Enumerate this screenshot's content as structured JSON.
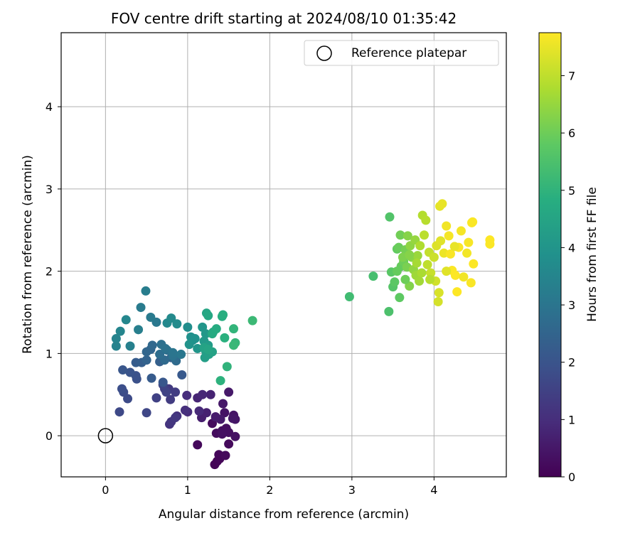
{
  "chart_data": {
    "type": "scatter",
    "title": "FOV centre drift starting at 2024/08/10 01:35:42",
    "xlabel": "Angular distance from reference (arcmin)",
    "ylabel": "Rotation from reference (arcmin)",
    "xlim": [
      -0.54,
      4.88
    ],
    "ylim": [
      -0.5,
      4.9
    ],
    "xticks": [
      0,
      1,
      2,
      3,
      4
    ],
    "yticks": [
      0,
      1,
      2,
      3,
      4
    ],
    "grid": true,
    "legend": {
      "position": "top-right",
      "entries": [
        "Reference platepar"
      ]
    },
    "reference_point": {
      "label": "Reference platepar",
      "x": 0,
      "y": 0
    },
    "colorbar": {
      "label": "Hours from first FF file",
      "colormap": "viridis",
      "range": [
        0,
        7.75
      ],
      "ticks": [
        0,
        1,
        2,
        3,
        4,
        5,
        6,
        7
      ]
    },
    "points": [
      [
        1.36,
        -0.31,
        0.05
      ],
      [
        1.33,
        -0.35,
        0.08
      ],
      [
        1.39,
        -0.28,
        0.1
      ],
      [
        1.38,
        -0.23,
        0.12
      ],
      [
        1.12,
        -0.11,
        0.15
      ],
      [
        1.46,
        -0.24,
        0.18
      ],
      [
        1.5,
        -0.1,
        0.2
      ],
      [
        1.3,
        0.15,
        0.22
      ],
      [
        1.35,
        0.03,
        0.25
      ],
      [
        1.42,
        0.06,
        0.28
      ],
      [
        1.47,
        0.09,
        0.3
      ],
      [
        1.5,
        0.04,
        0.32
      ],
      [
        1.42,
        0.02,
        0.35
      ],
      [
        1.58,
        -0.01,
        0.38
      ],
      [
        1.45,
        0.28,
        0.4
      ],
      [
        1.56,
        0.25,
        0.42
      ],
      [
        1.58,
        0.2,
        0.45
      ],
      [
        1.55,
        0.21,
        0.48
      ],
      [
        1.43,
        0.39,
        0.5
      ],
      [
        1.5,
        0.53,
        0.52
      ],
      [
        1.4,
        0.2,
        0.55
      ],
      [
        1.34,
        0.23,
        0.6
      ],
      [
        1.17,
        0.22,
        0.65
      ],
      [
        1.23,
        0.28,
        0.7
      ],
      [
        1.28,
        0.5,
        0.75
      ],
      [
        1.12,
        0.46,
        0.8
      ],
      [
        1.18,
        0.5,
        0.85
      ],
      [
        1.14,
        0.3,
        0.9
      ],
      [
        1.0,
        0.29,
        0.95
      ],
      [
        0.99,
        0.49,
        1.0
      ],
      [
        0.97,
        0.31,
        1.05
      ],
      [
        0.87,
        0.24,
        1.1
      ],
      [
        0.78,
        0.14,
        1.15
      ],
      [
        0.8,
        0.17,
        1.2
      ],
      [
        0.85,
        0.22,
        1.25
      ],
      [
        0.77,
        0.57,
        1.3
      ],
      [
        0.79,
        0.44,
        1.35
      ],
      [
        0.85,
        0.53,
        1.4
      ],
      [
        0.72,
        0.57,
        1.45
      ],
      [
        0.62,
        0.46,
        1.5
      ],
      [
        0.74,
        0.53,
        1.55
      ],
      [
        0.7,
        0.62,
        1.6
      ],
      [
        0.5,
        0.28,
        1.65
      ],
      [
        0.17,
        0.29,
        1.7
      ],
      [
        0.27,
        0.45,
        1.75
      ],
      [
        0.22,
        0.53,
        1.8
      ],
      [
        0.2,
        0.57,
        1.85
      ],
      [
        0.38,
        0.69,
        1.9
      ],
      [
        0.37,
        0.73,
        1.95
      ],
      [
        0.3,
        0.77,
        2.0
      ],
      [
        0.21,
        0.8,
        2.05
      ],
      [
        0.7,
        0.65,
        2.1
      ],
      [
        0.93,
        0.74,
        2.15
      ],
      [
        0.56,
        0.7,
        2.2
      ],
      [
        0.37,
        0.89,
        2.25
      ],
      [
        0.44,
        0.89,
        2.3
      ],
      [
        0.66,
        0.9,
        2.35
      ],
      [
        0.8,
        0.95,
        2.4
      ],
      [
        0.5,
        0.92,
        2.45
      ],
      [
        0.55,
        1.05,
        2.5
      ],
      [
        0.5,
        1.02,
        2.55
      ],
      [
        0.57,
        1.1,
        2.6
      ],
      [
        0.72,
        0.92,
        2.65
      ],
      [
        0.86,
        0.91,
        2.7
      ],
      [
        0.66,
        0.99,
        2.75
      ],
      [
        0.75,
        1.04,
        2.8
      ],
      [
        0.68,
        1.11,
        2.85
      ],
      [
        0.73,
        1.06,
        2.9
      ],
      [
        0.82,
        0.97,
        2.95
      ],
      [
        0.82,
        1.01,
        3.0
      ],
      [
        0.92,
        0.99,
        3.05
      ],
      [
        0.62,
        1.38,
        3.1
      ],
      [
        0.55,
        1.44,
        3.15
      ],
      [
        0.43,
        1.56,
        3.2
      ],
      [
        0.49,
        1.76,
        3.25
      ],
      [
        0.4,
        1.29,
        3.3
      ],
      [
        0.3,
        1.09,
        3.35
      ],
      [
        0.13,
        1.09,
        3.4
      ],
      [
        0.13,
        1.18,
        3.45
      ],
      [
        0.18,
        1.27,
        3.5
      ],
      [
        0.25,
        1.41,
        3.55
      ],
      [
        0.75,
        1.37,
        3.6
      ],
      [
        0.8,
        1.43,
        3.65
      ],
      [
        0.87,
        1.36,
        3.7
      ],
      [
        1.0,
        1.32,
        3.75
      ],
      [
        1.06,
        1.16,
        3.8
      ],
      [
        1.04,
        1.2,
        3.85
      ],
      [
        1.09,
        1.18,
        3.9
      ],
      [
        1.02,
        1.11,
        3.95
      ],
      [
        1.12,
        1.06,
        4.0
      ],
      [
        1.18,
        1.32,
        4.05
      ],
      [
        1.22,
        1.24,
        4.1
      ],
      [
        1.2,
        1.15,
        4.15
      ],
      [
        1.25,
        1.1,
        4.2
      ],
      [
        1.22,
        1.03,
        4.25
      ],
      [
        1.21,
        0.95,
        4.3
      ],
      [
        1.26,
        0.99,
        4.35
      ],
      [
        1.3,
        1.02,
        4.4
      ],
      [
        1.2,
        1.07,
        4.45
      ],
      [
        1.25,
        1.05,
        4.5
      ],
      [
        1.23,
        1.49,
        4.55
      ],
      [
        1.25,
        1.46,
        4.6
      ],
      [
        1.31,
        1.26,
        4.65
      ],
      [
        1.3,
        1.24,
        4.7
      ],
      [
        1.35,
        1.3,
        4.75
      ],
      [
        1.42,
        1.45,
        4.8
      ],
      [
        1.43,
        1.47,
        4.85
      ],
      [
        1.45,
        1.19,
        4.9
      ],
      [
        1.4,
        0.67,
        4.95
      ],
      [
        1.48,
        0.84,
        5.0
      ],
      [
        1.56,
        1.3,
        5.05
      ],
      [
        1.58,
        1.13,
        5.1
      ],
      [
        1.56,
        1.1,
        5.15
      ],
      [
        1.79,
        1.4,
        5.2
      ],
      [
        2.97,
        1.69,
        5.3
      ],
      [
        3.26,
        1.94,
        5.4
      ],
      [
        3.45,
        1.51,
        5.5
      ],
      [
        3.46,
        2.66,
        5.6
      ],
      [
        3.5,
        1.81,
        5.65
      ],
      [
        3.48,
        1.99,
        5.7
      ],
      [
        3.52,
        1.87,
        5.75
      ],
      [
        3.58,
        1.68,
        5.8
      ],
      [
        3.55,
        2.27,
        5.85
      ],
      [
        3.6,
        2.06,
        5.9
      ],
      [
        3.57,
        2.29,
        5.95
      ],
      [
        3.63,
        2.12,
        6.0
      ],
      [
        3.59,
        2.44,
        6.05
      ],
      [
        3.65,
        2.26,
        6.1
      ],
      [
        3.67,
        2.05,
        6.15
      ],
      [
        3.62,
        2.17,
        6.2
      ],
      [
        3.7,
        1.82,
        6.25
      ],
      [
        3.68,
        2.43,
        6.3
      ],
      [
        3.73,
        2.17,
        6.35
      ],
      [
        3.71,
        2.31,
        6.4
      ],
      [
        3.75,
        2.02,
        6.45
      ],
      [
        3.77,
        2.38,
        6.5
      ],
      [
        3.8,
        2.19,
        6.55
      ],
      [
        3.78,
        1.95,
        6.6
      ],
      [
        3.82,
        1.88,
        6.65
      ],
      [
        3.79,
        2.1,
        6.7
      ],
      [
        3.85,
        1.98,
        6.75
      ],
      [
        3.83,
        2.31,
        6.8
      ],
      [
        3.86,
        2.68,
        6.85
      ],
      [
        3.9,
        2.62,
        6.9
      ],
      [
        3.88,
        2.44,
        6.95
      ],
      [
        3.92,
        2.08,
        7.0
      ],
      [
        3.94,
        2.23,
        7.05
      ],
      [
        3.96,
        1.98,
        7.1
      ],
      [
        4.0,
        2.17,
        7.15
      ],
      [
        4.02,
        1.88,
        7.2
      ],
      [
        4.05,
        1.63,
        7.25
      ],
      [
        4.06,
        1.74,
        7.3
      ],
      [
        4.03,
        2.31,
        7.35
      ],
      [
        4.08,
        2.37,
        7.4
      ],
      [
        4.07,
        2.79,
        7.45
      ],
      [
        4.1,
        2.82,
        7.5
      ],
      [
        4.12,
        2.22,
        7.55
      ],
      [
        4.15,
        2.55,
        7.6
      ],
      [
        4.18,
        2.43,
        7.65
      ],
      [
        4.2,
        2.21,
        7.7
      ],
      [
        4.22,
        2.01,
        7.72
      ],
      [
        4.26,
        1.95,
        7.74
      ],
      [
        4.28,
        1.75,
        7.75
      ],
      [
        4.3,
        2.29,
        7.7
      ],
      [
        4.33,
        2.49,
        7.65
      ],
      [
        4.36,
        1.93,
        7.6
      ],
      [
        4.4,
        2.22,
        7.62
      ],
      [
        4.42,
        2.35,
        7.68
      ],
      [
        4.45,
        1.86,
        7.7
      ],
      [
        4.46,
        2.59,
        7.72
      ],
      [
        4.48,
        2.09,
        7.74
      ],
      [
        4.68,
        2.38,
        7.75
      ],
      [
        4.68,
        2.33,
        7.73
      ],
      [
        4.47,
        2.6,
        7.71
      ],
      [
        4.25,
        2.3,
        7.5
      ],
      [
        4.15,
        2.0,
        7.4
      ],
      [
        3.95,
        1.9,
        6.9
      ],
      [
        3.7,
        2.2,
        6.3
      ],
      [
        3.55,
        2.0,
        5.9
      ],
      [
        3.65,
        1.9,
        6.0
      ]
    ]
  }
}
